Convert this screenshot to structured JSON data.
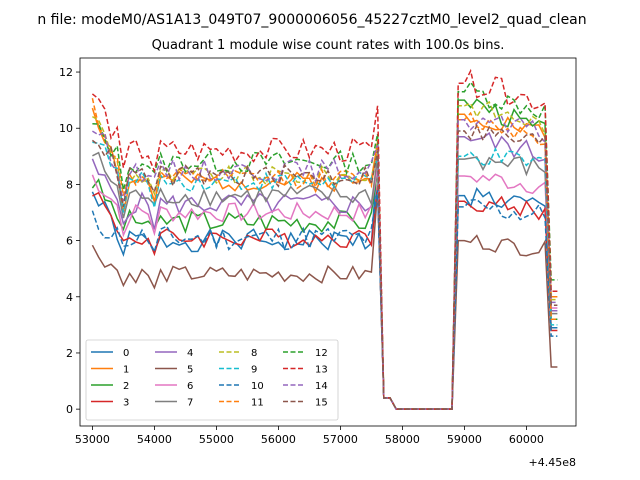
{
  "chart_data": {
    "type": "line",
    "suptitle": "n file: modeM0/AS1A13_049T07_9000006056_45227cztM0_level2_quad_clean",
    "title": "Quadrant 1 module wise count rates with 100.0s bins.",
    "xlabel": "",
    "ylabel": "",
    "x_offset_label": "+4.45e8",
    "xlim": [
      52800,
      60800
    ],
    "ylim": [
      -0.6,
      12.5
    ],
    "xticks": [
      53000,
      54000,
      55000,
      56000,
      57000,
      58000,
      59000,
      60000
    ],
    "xtick_labels": [
      "53000",
      "54000",
      "55000",
      "56000",
      "57000",
      "58000",
      "59000",
      "60000"
    ],
    "yticks": [
      0,
      2,
      4,
      6,
      8,
      10,
      12
    ],
    "ytick_labels": [
      "0",
      "2",
      "4",
      "6",
      "8",
      "10",
      "12"
    ],
    "grid": false,
    "legend_position": "lower-left",
    "legend_columns": 4,
    "series": [
      {
        "name": "0",
        "color": "#1f77b4",
        "dash": "solid",
        "base": 6.0,
        "start": 7.7,
        "recover": 5.5,
        "peak": 7.6,
        "spike": 9.0,
        "final": 2.9,
        "amp": 0.4,
        "seed": 1
      },
      {
        "name": "1",
        "color": "#ff7f0e",
        "dash": "solid",
        "base": 8.1,
        "start": 10.8,
        "recover": 7.0,
        "peak": 10.5,
        "spike": 9.5,
        "final": 4.0,
        "amp": 0.35,
        "seed": 2
      },
      {
        "name": "2",
        "color": "#2ca02c",
        "dash": "solid",
        "base": 6.7,
        "start": 8.1,
        "recover": 6.4,
        "peak": 11.0,
        "spike": 8.5,
        "final": 3.2,
        "amp": 0.4,
        "seed": 3
      },
      {
        "name": "3",
        "color": "#d62728",
        "dash": "solid",
        "base": 6.1,
        "start": 7.9,
        "recover": 6.0,
        "peak": 7.4,
        "spike": 8.0,
        "final": 2.8,
        "amp": 0.35,
        "seed": 4
      },
      {
        "name": "4",
        "color": "#9467bd",
        "dash": "solid",
        "base": 7.3,
        "start": 8.6,
        "recover": 6.6,
        "peak": 9.7,
        "spike": 8.8,
        "final": 3.5,
        "amp": 0.4,
        "seed": 5
      },
      {
        "name": "5",
        "color": "#8c564b",
        "dash": "solid",
        "base": 4.8,
        "start": 5.7,
        "recover": 4.4,
        "peak": 6.0,
        "spike": 7.8,
        "final": 1.5,
        "amp": 0.3,
        "seed": 6
      },
      {
        "name": "6",
        "color": "#e377c2",
        "dash": "solid",
        "base": 7.0,
        "start": 8.3,
        "recover": 6.2,
        "peak": 8.3,
        "spike": 8.6,
        "final": 3.6,
        "amp": 0.35,
        "seed": 7
      },
      {
        "name": "7",
        "color": "#7f7f7f",
        "dash": "solid",
        "base": 7.6,
        "start": 9.1,
        "recover": 6.8,
        "peak": 8.9,
        "spike": 9.0,
        "final": 3.4,
        "amp": 0.4,
        "seed": 8
      },
      {
        "name": "8",
        "color": "#bcbd22",
        "dash": "dashed",
        "base": 8.3,
        "start": 10.6,
        "recover": 7.2,
        "peak": 10.8,
        "spike": 9.3,
        "final": 3.9,
        "amp": 0.35,
        "seed": 9
      },
      {
        "name": "9",
        "color": "#17becf",
        "dash": "dashed",
        "base": 8.1,
        "start": 9.8,
        "recover": 7.0,
        "peak": 9.0,
        "spike": 9.0,
        "final": 3.0,
        "amp": 0.35,
        "seed": 10
      },
      {
        "name": "10",
        "color": "#1f77b4",
        "dash": "dashed",
        "base": 6.1,
        "start": 6.7,
        "recover": 5.8,
        "peak": 7.2,
        "spike": 7.8,
        "final": 2.6,
        "amp": 0.45,
        "seed": 11
      },
      {
        "name": "11",
        "color": "#ff7f0e",
        "dash": "dashed",
        "base": 8.2,
        "start": 10.9,
        "recover": 7.6,
        "peak": 10.3,
        "spike": 9.6,
        "final": 3.2,
        "amp": 0.35,
        "seed": 12
      },
      {
        "name": "12",
        "color": "#2ca02c",
        "dash": "dashed",
        "base": 8.8,
        "start": 10.1,
        "recover": 7.8,
        "peak": 11.3,
        "spike": 9.8,
        "final": 4.6,
        "amp": 0.4,
        "seed": 13
      },
      {
        "name": "13",
        "color": "#d62728",
        "dash": "dashed",
        "base": 9.2,
        "start": 11.3,
        "recover": 8.6,
        "peak": 11.6,
        "spike": 10.8,
        "final": 4.2,
        "amp": 0.45,
        "seed": 14
      },
      {
        "name": "14",
        "color": "#9467bd",
        "dash": "dashed",
        "base": 8.5,
        "start": 10.1,
        "recover": 7.4,
        "peak": 10.3,
        "spike": 9.4,
        "final": 3.8,
        "amp": 0.4,
        "seed": 15
      },
      {
        "name": "15",
        "color": "#8c564b",
        "dash": "dashed",
        "base": 8.3,
        "start": 9.9,
        "recover": 7.2,
        "peak": 9.9,
        "spike": 9.2,
        "final": 3.7,
        "amp": 0.4,
        "seed": 16
      }
    ],
    "segments": {
      "x_start": 53000,
      "step": 100,
      "gap_start": 57700,
      "gap_end": 58900,
      "x_end": 60500
    }
  }
}
